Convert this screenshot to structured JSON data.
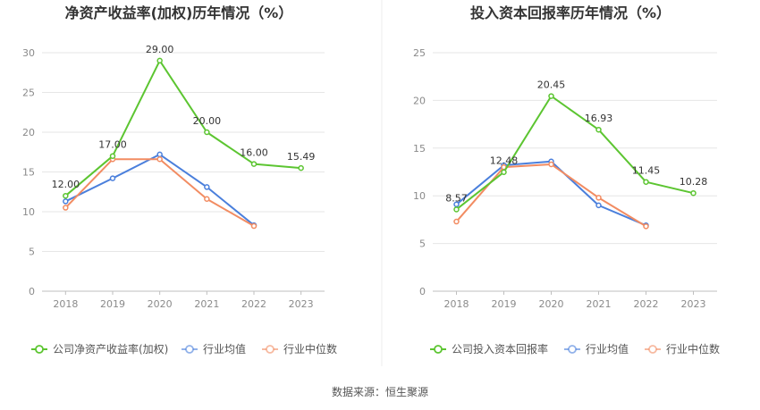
{
  "source_note": "数据来源：恒生聚源",
  "colors": {
    "company": "#5cc531",
    "industry_avg": "#4a7fdc",
    "industry_median": "#f28c62"
  },
  "chart_data": [
    {
      "type": "line",
      "title": "净资产收益率(加权)历年情况（%）",
      "categories": [
        "2018",
        "2019",
        "2020",
        "2021",
        "2022",
        "2023"
      ],
      "ylim": [
        0,
        30
      ],
      "yticks": [
        "0",
        "5",
        "10",
        "15",
        "20",
        "25",
        "30"
      ],
      "series": [
        {
          "name": "公司净资产收益率(加权)",
          "color": "#5cc531",
          "values": [
            12.0,
            17.0,
            29.0,
            20.0,
            16.0,
            15.49
          ],
          "labels": [
            "12.00",
            "17.00",
            "29.00",
            "20.00",
            "16.00",
            "15.49"
          ]
        },
        {
          "name": "行业均值",
          "color": "#4a7fdc",
          "values": [
            11.3,
            14.2,
            17.2,
            13.1,
            8.3,
            null
          ]
        },
        {
          "name": "行业中位数",
          "color": "#f28c62",
          "values": [
            10.5,
            16.6,
            16.6,
            11.6,
            8.2,
            null
          ]
        }
      ]
    },
    {
      "type": "line",
      "title": "投入资本回报率历年情况（%）",
      "categories": [
        "2018",
        "2019",
        "2020",
        "2021",
        "2022",
        "2023"
      ],
      "ylim": [
        0,
        25
      ],
      "yticks": [
        "0",
        "5",
        "10",
        "15",
        "20",
        "25"
      ],
      "series": [
        {
          "name": "公司投入资本回报率",
          "color": "#5cc531",
          "values": [
            8.57,
            12.48,
            20.45,
            16.93,
            11.45,
            10.28
          ],
          "labels": [
            "8.57",
            "12.48",
            "20.45",
            "16.93",
            "11.45",
            "10.28"
          ]
        },
        {
          "name": "行业均值",
          "color": "#4a7fdc",
          "values": [
            9.1,
            13.2,
            13.6,
            9.0,
            6.9,
            null
          ]
        },
        {
          "name": "行业中位数",
          "color": "#f28c62",
          "values": [
            7.3,
            13.0,
            13.3,
            9.8,
            6.8,
            null
          ]
        }
      ]
    }
  ]
}
